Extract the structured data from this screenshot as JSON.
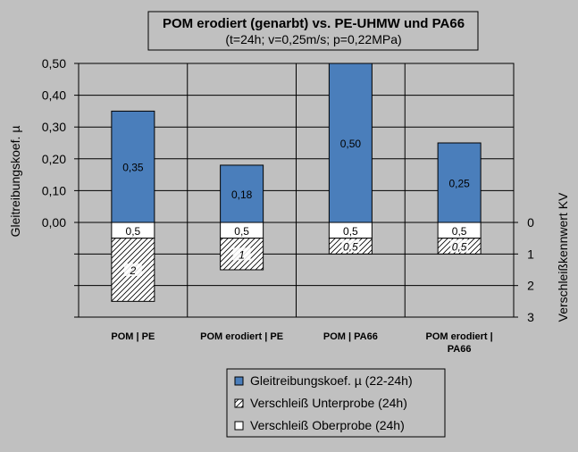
{
  "chart_data": {
    "type": "bar",
    "title": "POM erodiert (genarbt) vs. PE-UHMW und PA66",
    "subtitle": "(t=24h;  v=0,25m/s;  p=0,22MPa)",
    "categories": [
      [
        "POM | PE"
      ],
      [
        "POM erodiert | PE"
      ],
      [
        "POM | PA66"
      ],
      [
        "POM erodiert |",
        "PA66"
      ]
    ],
    "ylabel_left": "Gleitreibungskoef. µ",
    "ylabel_right": "Verschleißkennwert  KV",
    "y_left_range": [
      0,
      0.5
    ],
    "y_left_ticks": [
      "0,50",
      "0,40",
      "0,30",
      "0,20",
      "0,10",
      "0,00"
    ],
    "y_right_range": [
      0,
      3
    ],
    "y_right_ticks": [
      "0",
      "1",
      "2",
      "3"
    ],
    "grid": true,
    "legend_position": "bottom",
    "series": [
      {
        "name": "Gleitreibungskoef. µ (22-24h)",
        "values": [
          0.35,
          0.18,
          0.5,
          0.25
        ],
        "labels": [
          "0,35",
          "0,18",
          "0,50",
          "0,25"
        ],
        "color": "#4a7ebb",
        "axis": "left"
      },
      {
        "name": "Verschleiß Unterprobe (24h)",
        "values": [
          2,
          1,
          0.5,
          0.5
        ],
        "labels": [
          "2",
          "1",
          "0,5",
          "0,5"
        ],
        "pattern": "diagonal-hatch",
        "axis": "right"
      },
      {
        "name": "Verschleiß Oberprobe (24h)",
        "values": [
          0.5,
          0.5,
          0.5,
          0.5
        ],
        "labels": [
          "0,5",
          "0,5",
          "0,5",
          "0,5"
        ],
        "color": "#ffffff",
        "axis": "right"
      }
    ]
  }
}
